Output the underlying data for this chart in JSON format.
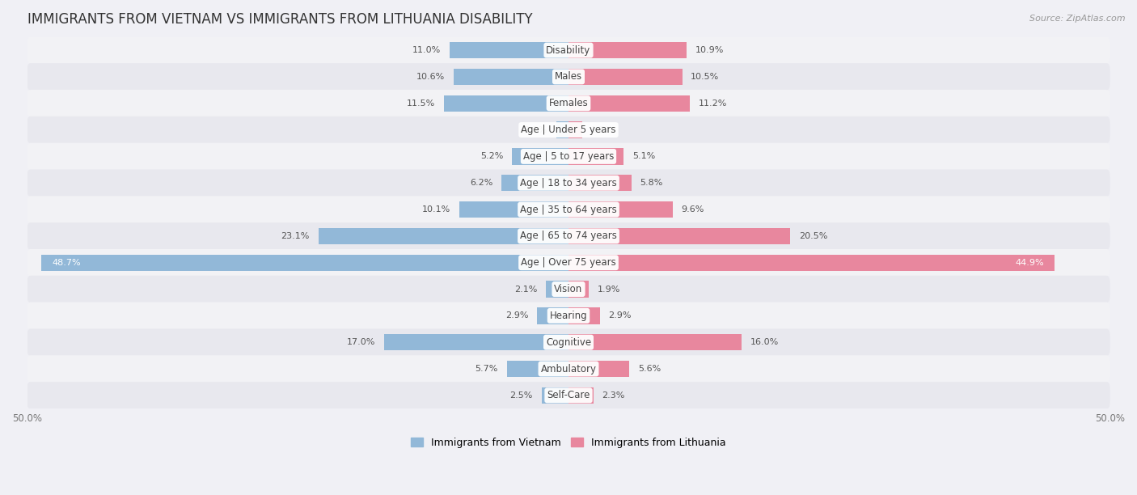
{
  "title": "IMMIGRANTS FROM VIETNAM VS IMMIGRANTS FROM LITHUANIA DISABILITY",
  "source": "Source: ZipAtlas.com",
  "categories": [
    "Disability",
    "Males",
    "Females",
    "Age | Under 5 years",
    "Age | 5 to 17 years",
    "Age | 18 to 34 years",
    "Age | 35 to 64 years",
    "Age | 65 to 74 years",
    "Age | Over 75 years",
    "Vision",
    "Hearing",
    "Cognitive",
    "Ambulatory",
    "Self-Care"
  ],
  "vietnam_values": [
    11.0,
    10.6,
    11.5,
    1.1,
    5.2,
    6.2,
    10.1,
    23.1,
    48.7,
    2.1,
    2.9,
    17.0,
    5.7,
    2.5
  ],
  "lithuania_values": [
    10.9,
    10.5,
    11.2,
    1.3,
    5.1,
    5.8,
    9.6,
    20.5,
    44.9,
    1.9,
    2.9,
    16.0,
    5.6,
    2.3
  ],
  "vietnam_color": "#92b8d8",
  "lithuania_color": "#e8879e",
  "vietnam_label": "Immigrants from Vietnam",
  "lithuania_label": "Immigrants from Lithuania",
  "xlim": 50.0,
  "bar_height": 0.62,
  "title_fontsize": 12,
  "label_fontsize": 8.5,
  "value_fontsize": 8,
  "legend_fontsize": 9,
  "row_colors": [
    "#f2f2f5",
    "#e8e8ee"
  ],
  "fig_bg": "#f0f0f5"
}
